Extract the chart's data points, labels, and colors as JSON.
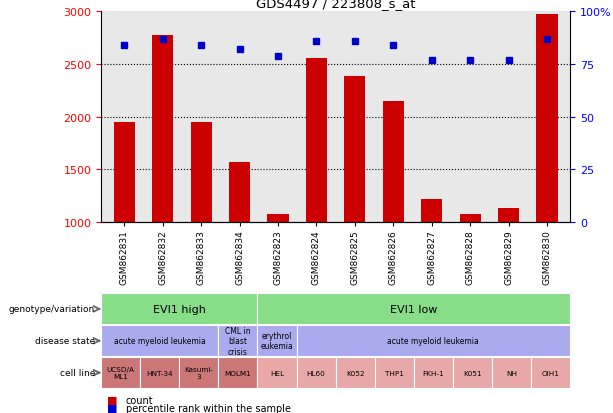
{
  "title": "GDS4497 / 223808_s_at",
  "samples": [
    "GSM862831",
    "GSM862832",
    "GSM862833",
    "GSM862834",
    "GSM862823",
    "GSM862824",
    "GSM862825",
    "GSM862826",
    "GSM862827",
    "GSM862828",
    "GSM862829",
    "GSM862830"
  ],
  "counts": [
    1950,
    2780,
    1950,
    1570,
    1075,
    2560,
    2390,
    2150,
    1215,
    1075,
    1130,
    2980
  ],
  "percentiles": [
    84,
    87,
    84,
    82,
    79,
    86,
    86,
    84,
    77,
    77,
    77,
    87
  ],
  "ylim_left": [
    1000,
    3000
  ],
  "ylim_right": [
    0,
    100
  ],
  "yticks_left": [
    1000,
    1500,
    2000,
    2500,
    3000
  ],
  "yticks_right": [
    0,
    25,
    50,
    75,
    100
  ],
  "bar_color": "#cc0000",
  "dot_color": "#0000cc",
  "bg_color": "#e8e8e8",
  "genotype_row": {
    "label": "genotype/variation",
    "groups": [
      {
        "text": "EVI1 high",
        "start": 0,
        "end": 4,
        "color": "#88dd88"
      },
      {
        "text": "EVI1 low",
        "start": 4,
        "end": 12,
        "color": "#88dd88"
      }
    ]
  },
  "disease_row": {
    "label": "disease state",
    "groups": [
      {
        "text": "acute myeloid leukemia",
        "start": 0,
        "end": 3,
        "color": "#aaaaee"
      },
      {
        "text": "CML in\nblast\ncrisis",
        "start": 3,
        "end": 4,
        "color": "#aaaaee"
      },
      {
        "text": "erythrol\neukemia",
        "start": 4,
        "end": 5,
        "color": "#aaaaee"
      },
      {
        "text": "acute myeloid leukemia",
        "start": 5,
        "end": 12,
        "color": "#aaaaee"
      }
    ]
  },
  "cell_row": {
    "label": "cell line",
    "cells": [
      {
        "text": "UCSD/A\nML1",
        "color": "#cc7777"
      },
      {
        "text": "HNT-34",
        "color": "#cc7777"
      },
      {
        "text": "Kasumi-\n3",
        "color": "#cc7777"
      },
      {
        "text": "MOLM1",
        "color": "#cc7777"
      },
      {
        "text": "HEL",
        "color": "#e8a8a8"
      },
      {
        "text": "HL60",
        "color": "#e8a8a8"
      },
      {
        "text": "K052",
        "color": "#e8a8a8"
      },
      {
        "text": "THP1",
        "color": "#e8a8a8"
      },
      {
        "text": "FKH-1",
        "color": "#e8a8a8"
      },
      {
        "text": "K051",
        "color": "#e8a8a8"
      },
      {
        "text": "NH",
        "color": "#e8a8a8"
      },
      {
        "text": "OIH1",
        "color": "#e8a8a8"
      }
    ]
  },
  "legend_count_color": "#cc0000",
  "legend_dot_color": "#0000cc"
}
